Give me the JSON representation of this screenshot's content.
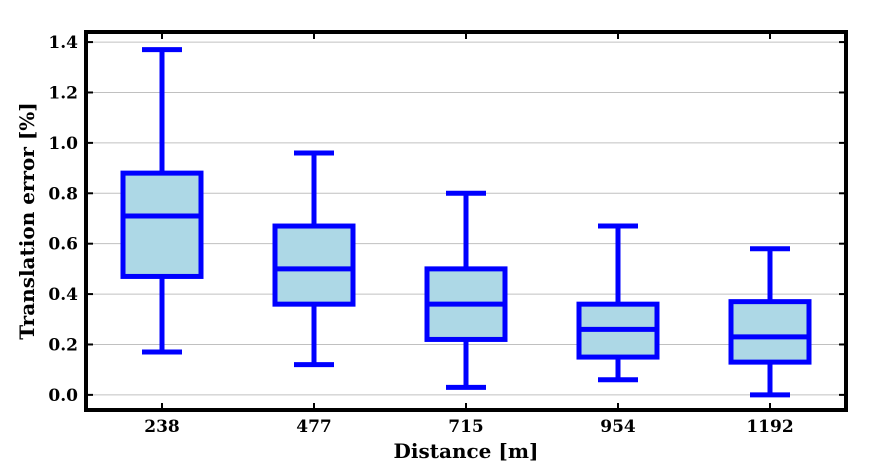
{
  "chart_data": {
    "type": "boxplot",
    "xlabel": "Distance [m]",
    "ylabel": "Translation error [%]",
    "ylim": [
      -0.06,
      1.44
    ],
    "yticks": [
      0.0,
      0.2,
      0.4,
      0.6,
      0.8,
      1.0,
      1.2,
      1.4
    ],
    "ytick_labels": [
      "0.0",
      "0.2",
      "0.4",
      "0.6",
      "0.8",
      "1.0",
      "1.2",
      "1.4"
    ],
    "grid": "horizontal",
    "categories": [
      "238",
      "477",
      "715",
      "954",
      "1192"
    ],
    "boxes": [
      {
        "category": "238",
        "whisker_low": 0.17,
        "q1": 0.47,
        "median": 0.71,
        "q3": 0.88,
        "whisker_high": 1.37
      },
      {
        "category": "477",
        "whisker_low": 0.12,
        "q1": 0.36,
        "median": 0.5,
        "q3": 0.67,
        "whisker_high": 0.96
      },
      {
        "category": "715",
        "whisker_low": 0.03,
        "q1": 0.22,
        "median": 0.36,
        "q3": 0.5,
        "whisker_high": 0.8
      },
      {
        "category": "954",
        "whisker_low": 0.06,
        "q1": 0.15,
        "median": 0.26,
        "q3": 0.36,
        "whisker_high": 0.67
      },
      {
        "category": "1192",
        "whisker_low": 0.0,
        "q1": 0.13,
        "median": 0.23,
        "q3": 0.37,
        "whisker_high": 0.58
      }
    ],
    "colors": {
      "box_fill": "#add8e6",
      "box_edge": "#0000ff",
      "grid": "#c0c0c0",
      "frame": "#000000"
    }
  }
}
